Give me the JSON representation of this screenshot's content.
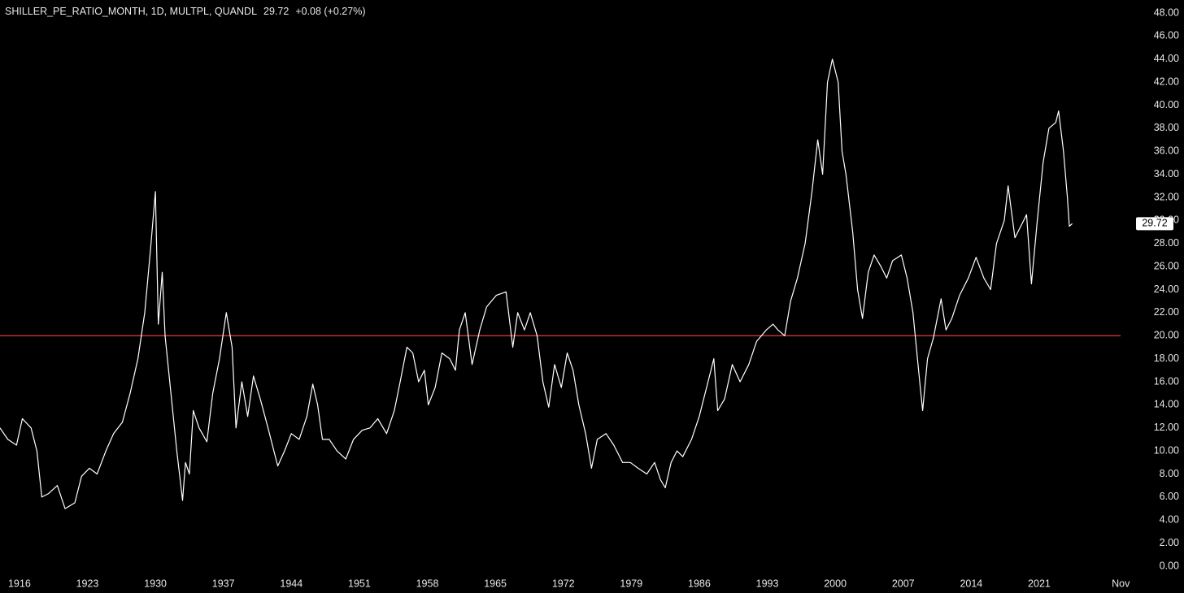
{
  "chart_data": {
    "type": "line",
    "symbol": "SHILLER_PE_RATIO_MONTH, 1D, MULTPL, QUANDL",
    "last_value": 29.72,
    "change": "+0.08 (+0.27%)",
    "color": "#ffffff",
    "x": [
      1914.0,
      1914.8,
      1915.7,
      1916.3,
      1917.2,
      1917.8,
      1918.3,
      1919.0,
      1919.9,
      1920.7,
      1921.7,
      1922.4,
      1923.2,
      1924.0,
      1924.9,
      1925.7,
      1926.6,
      1927.4,
      1928.2,
      1928.9,
      1929.5,
      1930.0,
      1930.3,
      1930.7,
      1931.0,
      1931.6,
      1932.2,
      1932.8,
      1933.1,
      1933.5,
      1933.9,
      1934.5,
      1935.3,
      1935.9,
      1936.6,
      1937.3,
      1937.9,
      1938.3,
      1938.9,
      1939.5,
      1940.1,
      1940.8,
      1941.6,
      1942.2,
      1942.6,
      1943.3,
      1944.0,
      1944.8,
      1945.6,
      1946.2,
      1946.7,
      1947.2,
      1947.9,
      1948.7,
      1949.6,
      1950.4,
      1951.3,
      1952.1,
      1952.9,
      1953.8,
      1954.6,
      1955.2,
      1955.9,
      1956.5,
      1957.1,
      1957.7,
      1958.1,
      1958.8,
      1959.5,
      1960.3,
      1960.9,
      1961.3,
      1961.9,
      1962.6,
      1963.4,
      1964.1,
      1965.1,
      1966.1,
      1966.8,
      1967.3,
      1968.0,
      1968.6,
      1969.3,
      1969.9,
      1970.5,
      1971.1,
      1971.8,
      1972.4,
      1973.0,
      1973.6,
      1974.3,
      1974.9,
      1975.5,
      1976.4,
      1977.2,
      1978.1,
      1978.9,
      1979.7,
      1980.6,
      1981.4,
      1982.0,
      1982.5,
      1983.1,
      1983.7,
      1984.3,
      1985.2,
      1986.0,
      1986.9,
      1987.5,
      1987.9,
      1988.6,
      1989.4,
      1990.2,
      1991.1,
      1991.9,
      1992.9,
      1993.6,
      1994.1,
      1994.8,
      1995.4,
      1996.1,
      1996.9,
      1997.6,
      1998.2,
      1998.7,
      1999.2,
      1999.7,
      2000.3,
      2000.7,
      2001.1,
      2001.8,
      2002.3,
      2002.8,
      2003.4,
      2004.0,
      2004.7,
      2005.3,
      2005.9,
      2006.8,
      2007.4,
      2008.0,
      2008.7,
      2009.0,
      2009.5,
      2010.1,
      2010.9,
      2011.4,
      2012.0,
      2012.8,
      2013.7,
      2014.5,
      2015.3,
      2016.0,
      2016.6,
      2017.4,
      2017.8,
      2018.5,
      2019.1,
      2019.7,
      2020.2,
      2020.8,
      2021.4,
      2022.0,
      2022.7,
      2023.0,
      2023.5,
      2023.9,
      2024.1,
      2024.4
    ],
    "values": [
      12,
      11,
      10.5,
      12.8,
      12,
      10,
      6,
      6.3,
      7,
      5,
      5.5,
      7.8,
      8.5,
      8,
      10,
      11.5,
      12.5,
      15,
      18,
      22,
      27.5,
      32.5,
      21,
      25.5,
      20,
      15,
      10,
      5.7,
      9,
      8,
      13.5,
      12,
      10.8,
      15,
      18,
      22,
      19,
      12,
      16,
      13,
      16.5,
      14.5,
      12,
      10,
      8.7,
      10,
      11.5,
      11,
      13,
      15.8,
      14,
      11,
      11,
      10,
      9.3,
      11,
      11.8,
      12,
      12.8,
      11.5,
      13.5,
      16,
      19,
      18.5,
      16,
      17,
      14,
      15.5,
      18.5,
      18,
      17,
      20.5,
      22,
      17.5,
      20.5,
      22.5,
      23.5,
      23.8,
      19,
      22,
      20.5,
      22,
      20,
      16,
      13.8,
      17.5,
      15.5,
      18.5,
      17,
      14,
      11.5,
      8.5,
      11,
      11.5,
      10.5,
      9,
      9,
      8.5,
      8,
      9,
      7.5,
      6.8,
      9,
      10,
      9.5,
      11,
      13,
      16,
      18,
      13.5,
      14.5,
      17.5,
      16,
      17.5,
      19.5,
      20.5,
      21,
      20.5,
      20,
      23,
      25,
      28,
      32.5,
      37,
      34,
      42,
      44,
      42,
      36,
      34,
      29,
      24,
      21.5,
      25.5,
      27,
      26,
      25,
      26.5,
      27,
      25,
      22,
      16,
      13.5,
      18,
      19.8,
      23.2,
      20.5,
      21.5,
      23.5,
      25,
      26.8,
      25,
      24,
      28,
      30,
      33,
      28.5,
      29.5,
      30.5,
      24.5,
      30,
      35,
      38,
      38.5,
      39.5,
      36,
      32,
      29.5,
      29.72
    ],
    "hline": {
      "value": 20,
      "color": "#e0413f"
    },
    "xlim": [
      1914,
      2030.8
    ],
    "xticks": [
      1916,
      1923,
      1930,
      1937,
      1944,
      1951,
      1958,
      1965,
      1972,
      1979,
      1986,
      1993,
      2000,
      2007,
      2014,
      2021,
      {
        "value": 2029.4,
        "label": "Nov"
      }
    ],
    "ylim": [
      0,
      48
    ],
    "yticks": [
      {
        "value": 0,
        "label": "0.00"
      },
      {
        "value": 2,
        "label": "2.00"
      },
      {
        "value": 4,
        "label": "4.00"
      },
      {
        "value": 6,
        "label": "6.00"
      },
      {
        "value": 8,
        "label": "8.00"
      },
      {
        "value": 10,
        "label": "10.00"
      },
      {
        "value": 12,
        "label": "12.00"
      },
      {
        "value": 14,
        "label": "14.00"
      },
      {
        "value": 16,
        "label": "16.00"
      },
      {
        "value": 18,
        "label": "18.00"
      },
      {
        "value": 20,
        "label": "20.00"
      },
      {
        "value": 22,
        "label": "22.00"
      },
      {
        "value": 24,
        "label": "24.00"
      },
      {
        "value": 26,
        "label": "26.00"
      },
      {
        "value": 28,
        "label": "28.00"
      },
      {
        "value": 30,
        "label": "30.00"
      },
      {
        "value": 32,
        "label": "32.00"
      },
      {
        "value": 34,
        "label": "34.00"
      },
      {
        "value": 36,
        "label": "36.00"
      },
      {
        "value": 38,
        "label": "38.00"
      },
      {
        "value": 40,
        "label": "40.00"
      },
      {
        "value": 42,
        "label": "42.00"
      },
      {
        "value": 44,
        "label": "44.00"
      },
      {
        "value": 46,
        "label": "46.00"
      },
      {
        "value": 48,
        "label": "48.00"
      }
    ],
    "grid": false
  }
}
